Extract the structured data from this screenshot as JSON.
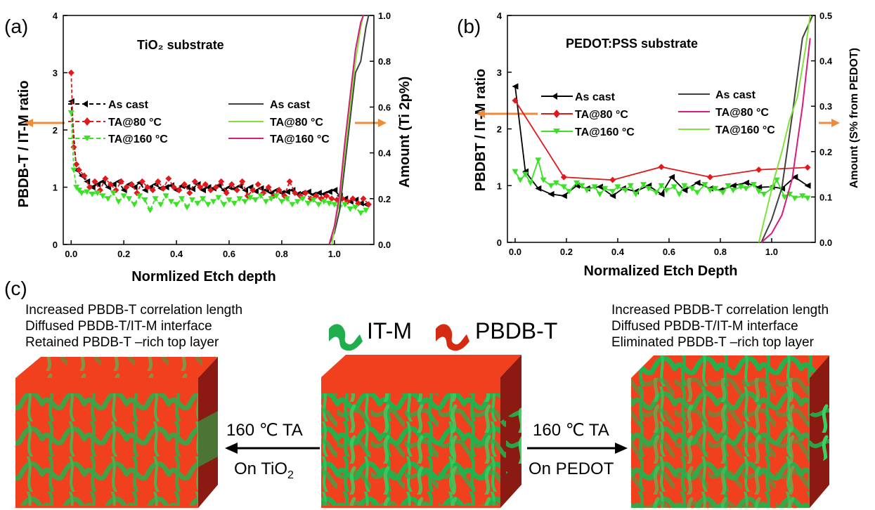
{
  "figure": {
    "panel_labels": [
      "(a)",
      "(b)",
      "(c)"
    ]
  },
  "chart_data": [
    {
      "type": "line",
      "title": "TiO₂ substrate",
      "xlabel": "Normlized Etch depth",
      "ylabel_left": "PBDB-T / IT-M ratio",
      "ylabel_right": "Amount (Ti 2p%)",
      "xlim": [
        -0.03,
        1.15
      ],
      "ylim_left": [
        0,
        4
      ],
      "ylim_right": [
        0,
        1.0
      ],
      "xticks": [
        "0.0",
        "0.2",
        "0.4",
        "0.6",
        "0.8",
        "1.0"
      ],
      "xtick_values": [
        0.0,
        0.2,
        0.4,
        0.6,
        0.8,
        1.0
      ],
      "yticks_left": [
        "0",
        "1",
        "2",
        "3",
        "4"
      ],
      "yticks_right": [
        "0.0",
        "0.2",
        "0.4",
        "0.6",
        "0.8",
        "1.0"
      ],
      "legend_left": [
        "As cast",
        "TA@80 °C",
        "TA@160 °C"
      ],
      "legend_right": [
        "As cast",
        "TA@80 °C",
        "TA@160 °C"
      ],
      "series": [
        {
          "name": "As cast",
          "axis": "left",
          "color": "#000000",
          "marker": "triangle-left",
          "dashed": true,
          "x": [
            0,
            0.02,
            0.04,
            0.06,
            0.08,
            0.1,
            0.12,
            0.14,
            0.16,
            0.18,
            0.2,
            0.22,
            0.24,
            0.26,
            0.28,
            0.3,
            0.32,
            0.34,
            0.36,
            0.38,
            0.4,
            0.42,
            0.44,
            0.46,
            0.48,
            0.5,
            0.52,
            0.54,
            0.56,
            0.58,
            0.6,
            0.62,
            0.64,
            0.66,
            0.68,
            0.7,
            0.72,
            0.74,
            0.76,
            0.78,
            0.8,
            0.82,
            0.84,
            0.86,
            0.88,
            0.9,
            0.92,
            0.94,
            0.96,
            0.98,
            1.0,
            1.02,
            1.04,
            1.06,
            1.08,
            1.1,
            1.12
          ],
          "y": [
            2.5,
            1.3,
            1.2,
            1.1,
            1.0,
            1.05,
            1.1,
            1.0,
            1.05,
            1.1,
            0.95,
            1.05,
            1.0,
            1.08,
            0.95,
            1.0,
            1.05,
            0.98,
            1.0,
            1.03,
            0.95,
            1.02,
            1.0,
            0.97,
            1.05,
            0.95,
            1.0,
            0.98,
            1.03,
            0.95,
            1.0,
            0.97,
            1.02,
            0.95,
            1.0,
            0.93,
            0.98,
            0.95,
            0.9,
            0.95,
            0.9,
            0.92,
            0.95,
            0.88,
            0.9,
            0.92,
            0.87,
            0.9,
            0.88,
            0.92,
            0.95,
            0.85,
            0.8,
            0.75,
            0.78,
            0.72,
            0.7
          ]
        },
        {
          "name": "TA@80 °C",
          "axis": "left",
          "color": "#e0191c",
          "marker": "diamond",
          "dashed": true,
          "x": [
            0,
            0.01,
            0.02,
            0.03,
            0.05,
            0.07,
            0.09,
            0.11,
            0.13,
            0.15,
            0.17,
            0.19,
            0.21,
            0.23,
            0.25,
            0.27,
            0.29,
            0.31,
            0.33,
            0.35,
            0.37,
            0.39,
            0.41,
            0.43,
            0.45,
            0.47,
            0.49,
            0.51,
            0.53,
            0.55,
            0.57,
            0.59,
            0.61,
            0.63,
            0.65,
            0.67,
            0.69,
            0.71,
            0.73,
            0.75,
            0.77,
            0.79,
            0.81,
            0.83,
            0.85,
            0.87,
            0.89,
            0.91,
            0.93,
            0.95,
            0.97,
            0.99,
            1.01,
            1.03,
            1.05,
            1.07,
            1.09,
            1.11,
            1.13
          ],
          "y": [
            3.0,
            1.7,
            1.4,
            1.3,
            1.2,
            1.0,
            1.1,
            0.95,
            1.15,
            1.05,
            0.95,
            1.1,
            1.0,
            1.05,
            0.9,
            1.1,
            1.0,
            0.95,
            1.1,
            0.98,
            1.15,
            1.0,
            0.95,
            1.05,
            0.9,
            1.1,
            1.0,
            1.05,
            0.95,
            1.0,
            1.1,
            0.9,
            1.05,
            0.95,
            1.1,
            0.85,
            0.95,
            1.05,
            0.9,
            1.0,
            0.85,
            0.95,
            0.85,
            1.1,
            0.9,
            0.85,
            0.9,
            0.8,
            0.85,
            0.8,
            0.85,
            0.8,
            0.78,
            0.8,
            0.75,
            0.8,
            0.72,
            0.8,
            0.7
          ]
        },
        {
          "name": "TA@160 °C",
          "axis": "left",
          "color": "#39e324",
          "marker": "triangle-down",
          "dashed": true,
          "x": [
            0,
            0.01,
            0.02,
            0.03,
            0.04,
            0.06,
            0.08,
            0.1,
            0.12,
            0.14,
            0.16,
            0.18,
            0.2,
            0.22,
            0.24,
            0.26,
            0.28,
            0.3,
            0.32,
            0.34,
            0.36,
            0.38,
            0.4,
            0.42,
            0.44,
            0.46,
            0.48,
            0.5,
            0.52,
            0.54,
            0.56,
            0.58,
            0.6,
            0.62,
            0.64,
            0.66,
            0.68,
            0.7,
            0.72,
            0.74,
            0.76,
            0.78,
            0.8,
            0.82,
            0.84,
            0.86,
            0.88,
            0.9,
            0.92,
            0.94,
            0.96,
            0.98,
            1.0,
            1.02,
            1.04,
            1.06,
            1.08,
            1.1,
            1.12
          ],
          "y": [
            2.3,
            1.3,
            1.0,
            0.95,
            0.9,
            0.92,
            0.88,
            0.9,
            0.85,
            0.8,
            0.9,
            0.75,
            0.85,
            0.8,
            0.7,
            0.85,
            0.78,
            0.6,
            0.8,
            0.7,
            0.85,
            0.75,
            0.7,
            0.8,
            0.65,
            0.78,
            0.72,
            0.8,
            0.7,
            0.75,
            0.82,
            0.7,
            0.78,
            0.72,
            0.8,
            0.75,
            0.82,
            0.78,
            0.85,
            0.75,
            0.8,
            0.85,
            0.75,
            0.8,
            0.7,
            0.75,
            0.8,
            0.72,
            0.78,
            0.7,
            0.75,
            0.72,
            0.7,
            0.65,
            0.7,
            0.62,
            0.65,
            0.55,
            0.6
          ]
        },
        {
          "name": "As cast",
          "axis": "right",
          "color": "#404040",
          "marker": "none",
          "dashed": false,
          "x": [
            0.98,
            1.0,
            1.02,
            1.04,
            1.06,
            1.08,
            1.1,
            1.12,
            1.13
          ],
          "y": [
            0.0,
            0.05,
            0.15,
            0.35,
            0.55,
            0.75,
            0.8,
            0.95,
            1.0
          ]
        },
        {
          "name": "TA@80 °C",
          "axis": "right",
          "color": "#7ee23a",
          "marker": "none",
          "dashed": false,
          "x": [
            0.99,
            1.0,
            1.02,
            1.04,
            1.06,
            1.08,
            1.1,
            1.11
          ],
          "y": [
            0.0,
            0.07,
            0.2,
            0.4,
            0.6,
            0.8,
            0.95,
            1.0
          ]
        },
        {
          "name": "TA@160 °C",
          "axis": "right",
          "color": "#d81b7c",
          "marker": "none",
          "dashed": false,
          "x": [
            0.98,
            1.0,
            1.02,
            1.04,
            1.06,
            1.08,
            1.1,
            1.11
          ],
          "y": [
            0.0,
            0.08,
            0.22,
            0.45,
            0.65,
            0.85,
            0.97,
            1.0
          ]
        }
      ]
    },
    {
      "type": "line",
      "title": "PEDOT:PSS substrate",
      "xlabel": "Normalized Etch Depth",
      "ylabel_left": "PBDBT / IT-M ratio",
      "ylabel_right": "Amount (S% from PEDOT)",
      "xlim": [
        -0.03,
        1.17
      ],
      "ylim_left": [
        0,
        4
      ],
      "ylim_right": [
        0,
        0.5
      ],
      "xticks": [
        "0.0",
        "0.2",
        "0.4",
        "0.6",
        "0.8",
        "1.0"
      ],
      "xtick_values": [
        0.0,
        0.2,
        0.4,
        0.6,
        0.8,
        1.0
      ],
      "yticks_left": [
        "0",
        "1",
        "2",
        "3",
        "4"
      ],
      "yticks_right": [
        "0.0",
        "0.1",
        "0.2",
        "0.3",
        "0.4",
        "0.5"
      ],
      "legend_left": [
        "As cast",
        "TA@80 °C",
        "TA@160 °C"
      ],
      "legend_right": [
        "As cast",
        "TA@80 °C",
        "TA@160 °C"
      ],
      "series": [
        {
          "name": "As cast",
          "axis": "left",
          "color": "#000000",
          "marker": "triangle-left",
          "dashed": false,
          "x": [
            0,
            0.04,
            0.09,
            0.14,
            0.19,
            0.24,
            0.28,
            0.33,
            0.38,
            0.42,
            0.47,
            0.52,
            0.57,
            0.61,
            0.66,
            0.71,
            0.76,
            0.8,
            0.85,
            0.9,
            0.95,
            1.0,
            1.04,
            1.09,
            1.14
          ],
          "y": [
            2.75,
            1.25,
            0.95,
            0.85,
            0.82,
            1.0,
            0.95,
            0.98,
            0.82,
            0.95,
            0.9,
            1.0,
            0.85,
            1.15,
            0.92,
            1.05,
            0.95,
            0.92,
            1.0,
            1.05,
            0.97,
            0.98,
            0.95,
            1.15,
            1.0
          ]
        },
        {
          "name": "TA@80 °C",
          "axis": "left",
          "color": "#e0191c",
          "marker": "diamond",
          "dashed": false,
          "x": [
            0,
            0.19,
            0.38,
            0.57,
            0.76,
            0.95,
            1.14
          ],
          "y": [
            2.5,
            1.15,
            1.1,
            1.33,
            1.15,
            1.28,
            1.32
          ]
        },
        {
          "name": "TA@160 °C",
          "axis": "left",
          "color": "#39e324",
          "marker": "triangle-down",
          "dashed": false,
          "x": [
            0,
            0.02,
            0.04,
            0.06,
            0.09,
            0.11,
            0.14,
            0.16,
            0.19,
            0.21,
            0.24,
            0.26,
            0.28,
            0.31,
            0.33,
            0.35,
            0.38,
            0.4,
            0.43,
            0.45,
            0.47,
            0.5,
            0.52,
            0.55,
            0.57,
            0.59,
            0.62,
            0.64,
            0.66,
            0.69,
            0.71,
            0.74,
            0.76,
            0.78,
            0.81,
            0.83,
            0.85,
            0.88,
            0.9,
            0.93,
            0.95,
            0.97,
            1.0,
            1.02,
            1.05,
            1.07,
            1.09,
            1.12,
            1.14
          ],
          "y": [
            1.25,
            1.1,
            1.2,
            1.05,
            1.45,
            1.1,
            1.0,
            1.05,
            0.98,
            0.9,
            1.05,
            1.0,
            0.92,
            0.98,
            0.85,
            0.95,
            0.9,
            0.98,
            0.92,
            1.0,
            0.85,
            1.02,
            0.95,
            0.88,
            1.0,
            0.92,
            0.98,
            0.85,
            1.0,
            0.95,
            0.88,
            1.02,
            0.92,
            0.95,
            0.88,
            1.0,
            0.92,
            0.98,
            0.95,
            1.02,
            0.9,
            0.85,
            0.95,
            1.1,
            0.8,
            0.85,
            0.78,
            0.82,
            0.78
          ]
        },
        {
          "name": "As cast",
          "axis": "right",
          "color": "#404040",
          "marker": "none",
          "dashed": false,
          "x": [
            0.96,
            1.0,
            1.04,
            1.08,
            1.12,
            1.16
          ],
          "y": [
            0.0,
            0.05,
            0.12,
            0.28,
            0.45,
            0.5
          ]
        },
        {
          "name": "TA@80 °C",
          "axis": "right",
          "color": "#d81b7c",
          "marker": "none",
          "dashed": false,
          "x": [
            0.96,
            1.0,
            1.04,
            1.08,
            1.12,
            1.15
          ],
          "y": [
            0.0,
            0.02,
            0.06,
            0.14,
            0.3,
            0.45
          ]
        },
        {
          "name": "TA@160 °C",
          "axis": "right",
          "color": "#7ee23a",
          "marker": "none",
          "dashed": false,
          "x": [
            0.95,
            0.98,
            1.01,
            1.04,
            1.07,
            1.1,
            1.13,
            1.15
          ],
          "y": [
            0.0,
            0.07,
            0.14,
            0.2,
            0.27,
            0.32,
            0.42,
            0.5
          ]
        }
      ]
    }
  ],
  "panel_c": {
    "left_text": [
      "Increased PBDB-T correlation length",
      "Diffused PBDB-T/IT-M interface",
      "Retained PBDB-T –rich top layer"
    ],
    "right_text": [
      "Increased PBDB-T correlation length",
      "Diffused PBDB-T/IT-M interface",
      "Eliminated PBDB-T –rich top layer"
    ],
    "legend": [
      {
        "label": "IT-M",
        "color": "#1fae4b"
      },
      {
        "label": "PBDB-T",
        "color": "#d42a12"
      }
    ],
    "arrow_left": {
      "top": "160 ℃ TA",
      "bottom_main": "On TiO",
      "bottom_sub": "2"
    },
    "arrow_right": {
      "top": "160 ℃ TA",
      "bottom": "On PEDOT"
    },
    "colors": {
      "red": "#f0401e",
      "dark_red": "#8a1a12",
      "green": "#23b14d",
      "arrow_orange": "#ec8b3a"
    }
  }
}
